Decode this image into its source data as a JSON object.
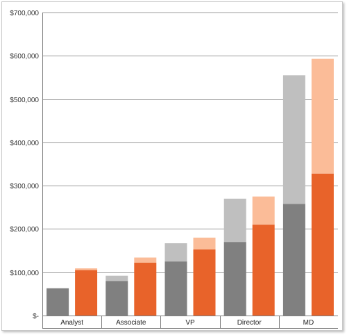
{
  "chart_data": {
    "type": "bar",
    "stacked_pairs": true,
    "categories": [
      "Analyst",
      "Associate",
      "VP",
      "Director",
      "MD"
    ],
    "y_ticks": [
      {
        "value": 0,
        "label": "$-"
      },
      {
        "value": 100000,
        "label": "$100,000"
      },
      {
        "value": 200000,
        "label": "$200,000"
      },
      {
        "value": 300000,
        "label": "$300,000"
      },
      {
        "value": 400000,
        "label": "$400,000"
      },
      {
        "value": 500000,
        "label": "$500,000"
      },
      {
        "value": 600000,
        "label": "$600,000"
      },
      {
        "value": 700000,
        "label": "$700,000"
      }
    ],
    "ylim": [
      0,
      700000
    ],
    "grid": true,
    "legend": "none",
    "groups": [
      {
        "stack": [
          {
            "values": [
              63000,
              80000,
              125000,
              170000,
              258000
            ],
            "color": "#808080"
          },
          {
            "values": [
              0,
              12000,
              42000,
              100000,
              297000
            ],
            "color": "#bfbfbf"
          }
        ]
      },
      {
        "stack": [
          {
            "values": [
              105000,
              122000,
              153000,
              210000,
              328000
            ],
            "color": "#e8632a"
          },
          {
            "values": [
              4000,
              12000,
              27000,
              65000,
              265000
            ],
            "color": "#fbbc98"
          }
        ]
      }
    ]
  }
}
